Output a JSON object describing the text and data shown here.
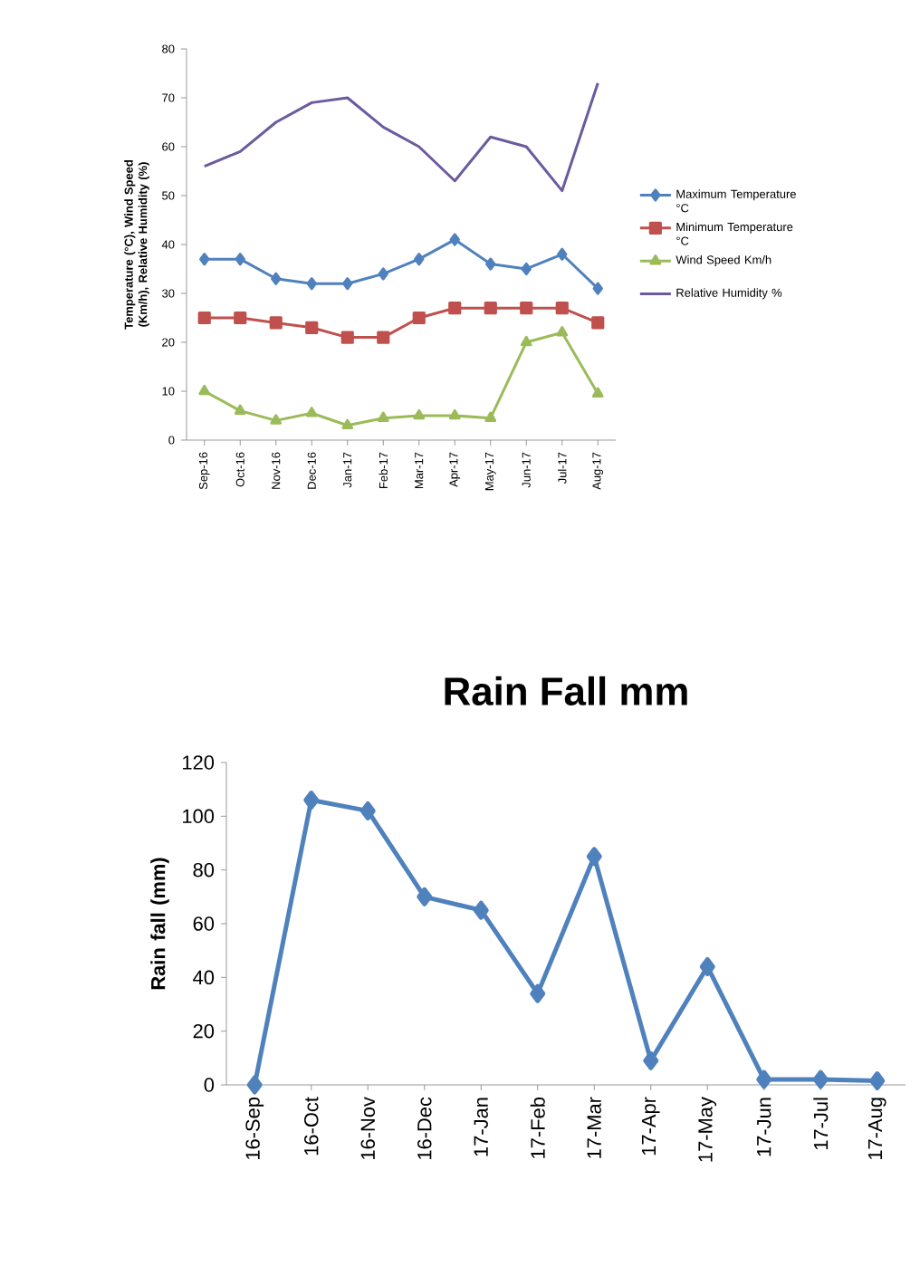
{
  "chart_data": [
    {
      "type": "line",
      "ylabel": "Temperature (°C), Wind Speed (Km/h), Relative Humidity (%)",
      "categories": [
        "Sep-16",
        "Oct-16",
        "Nov-16",
        "Dec-16",
        "Jan-17",
        "Feb-17",
        "Mar-17",
        "Apr-17",
        "May-17",
        "Jun-17",
        "Jul-17",
        "Aug-17"
      ],
      "series": [
        {
          "name": "Maximum Temperature °C",
          "color": "#4f81bd",
          "marker": "diamond",
          "values": [
            37,
            37,
            33,
            32,
            32,
            34,
            37,
            41,
            36,
            35,
            38,
            31
          ]
        },
        {
          "name": "Minimum Temperature °C",
          "color": "#c0504d",
          "marker": "square",
          "values": [
            25,
            25,
            24,
            23,
            21,
            21,
            25,
            27,
            27,
            27,
            27,
            24
          ]
        },
        {
          "name": "Wind Speed  Km/h",
          "color": "#9bbb59",
          "marker": "triangle",
          "values": [
            10,
            6,
            4,
            5.5,
            3,
            4.5,
            5,
            5,
            4.5,
            20,
            22,
            9.5
          ]
        },
        {
          "name": "Relative Humidity %",
          "color": "#6b5b9e",
          "marker": "none",
          "values": [
            56,
            59,
            65,
            69,
            70,
            64,
            60,
            53,
            62,
            60,
            51,
            73
          ]
        }
      ],
      "ylim": [
        0,
        80
      ],
      "yticks": [
        0,
        10,
        20,
        30,
        40,
        50,
        60,
        70,
        80
      ],
      "legend": "right"
    },
    {
      "type": "line",
      "title": "Rain Fall   mm",
      "ylabel": "Rain fall (mm)",
      "categories": [
        "16-Sep",
        "16-Oct",
        "16-Nov",
        "16-Dec",
        "17-Jan",
        "17-Feb",
        "17-Mar",
        "17-Apr",
        "17-May",
        "17-Jun",
        "17-Jul",
        "17-Aug"
      ],
      "series": [
        {
          "color": "#4f81bd",
          "marker": "diamond",
          "values": [
            0,
            106,
            102,
            70,
            65,
            34,
            85,
            9,
            44,
            2,
            2,
            1.5
          ]
        }
      ],
      "ylim": [
        0,
        120
      ],
      "yticks": [
        0,
        20,
        40,
        60,
        80,
        100,
        120
      ]
    }
  ]
}
